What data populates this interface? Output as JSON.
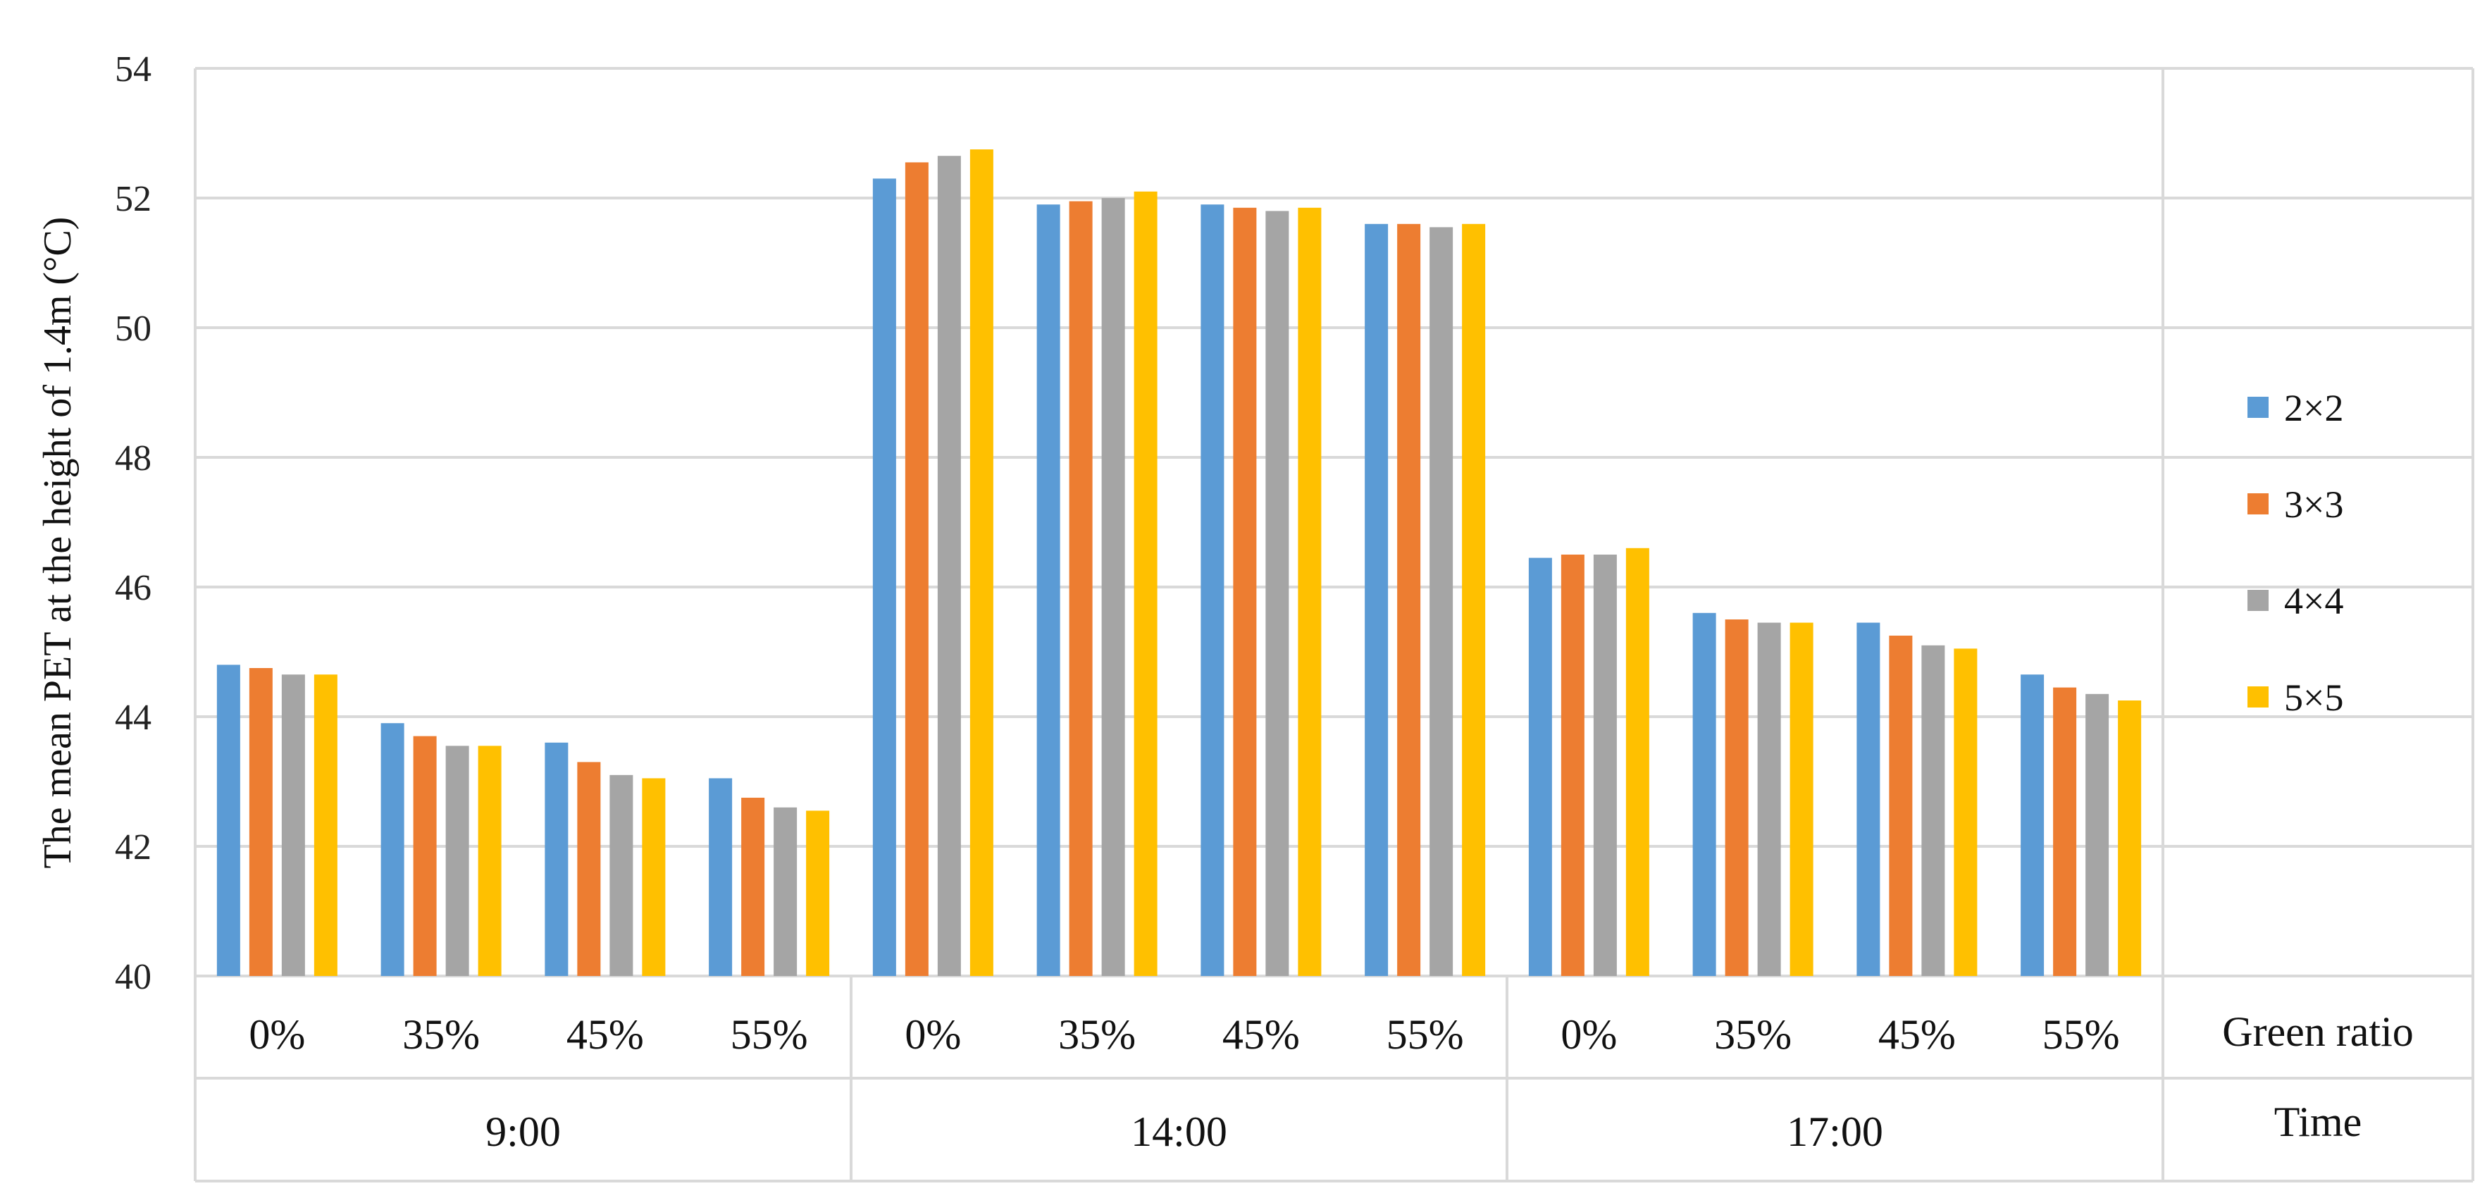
{
  "chart_data": {
    "type": "bar",
    "ylabel": "The mean PET at the height of 1.4m (°C)",
    "ylim": [
      40,
      54
    ],
    "yticks": [
      40,
      42,
      44,
      46,
      48,
      50,
      52,
      54
    ],
    "grid": true,
    "legend_position": "right",
    "categories": [
      "0%",
      "35%",
      "45%",
      "55%",
      "0%",
      "35%",
      "45%",
      "55%",
      "0%",
      "35%",
      "45%",
      "55%"
    ],
    "groups": [
      {
        "label": "9:00",
        "span": 4
      },
      {
        "label": "14:00",
        "span": 4
      },
      {
        "label": "17:00",
        "span": 4
      }
    ],
    "row_titles": {
      "categories": "Green ratio",
      "groups": "Time"
    },
    "series": [
      {
        "name": "2×2",
        "color": "#5B9BD5",
        "values": [
          44.8,
          43.9,
          43.6,
          43.05,
          52.3,
          51.9,
          51.9,
          51.6,
          46.45,
          45.6,
          45.45,
          44.65
        ]
      },
      {
        "name": "3×3",
        "color": "#ED7D31",
        "values": [
          44.75,
          43.7,
          43.3,
          42.75,
          52.55,
          51.95,
          51.85,
          51.6,
          46.5,
          45.5,
          45.25,
          44.45
        ]
      },
      {
        "name": "4×4",
        "color": "#A5A5A5",
        "values": [
          44.65,
          43.55,
          43.1,
          42.6,
          52.65,
          52.0,
          51.8,
          51.55,
          46.5,
          45.45,
          45.1,
          44.35
        ]
      },
      {
        "name": "5×5",
        "color": "#FFC000",
        "values": [
          44.65,
          43.55,
          43.05,
          42.55,
          52.75,
          52.1,
          51.85,
          51.6,
          46.6,
          45.45,
          45.05,
          44.25
        ]
      }
    ]
  }
}
